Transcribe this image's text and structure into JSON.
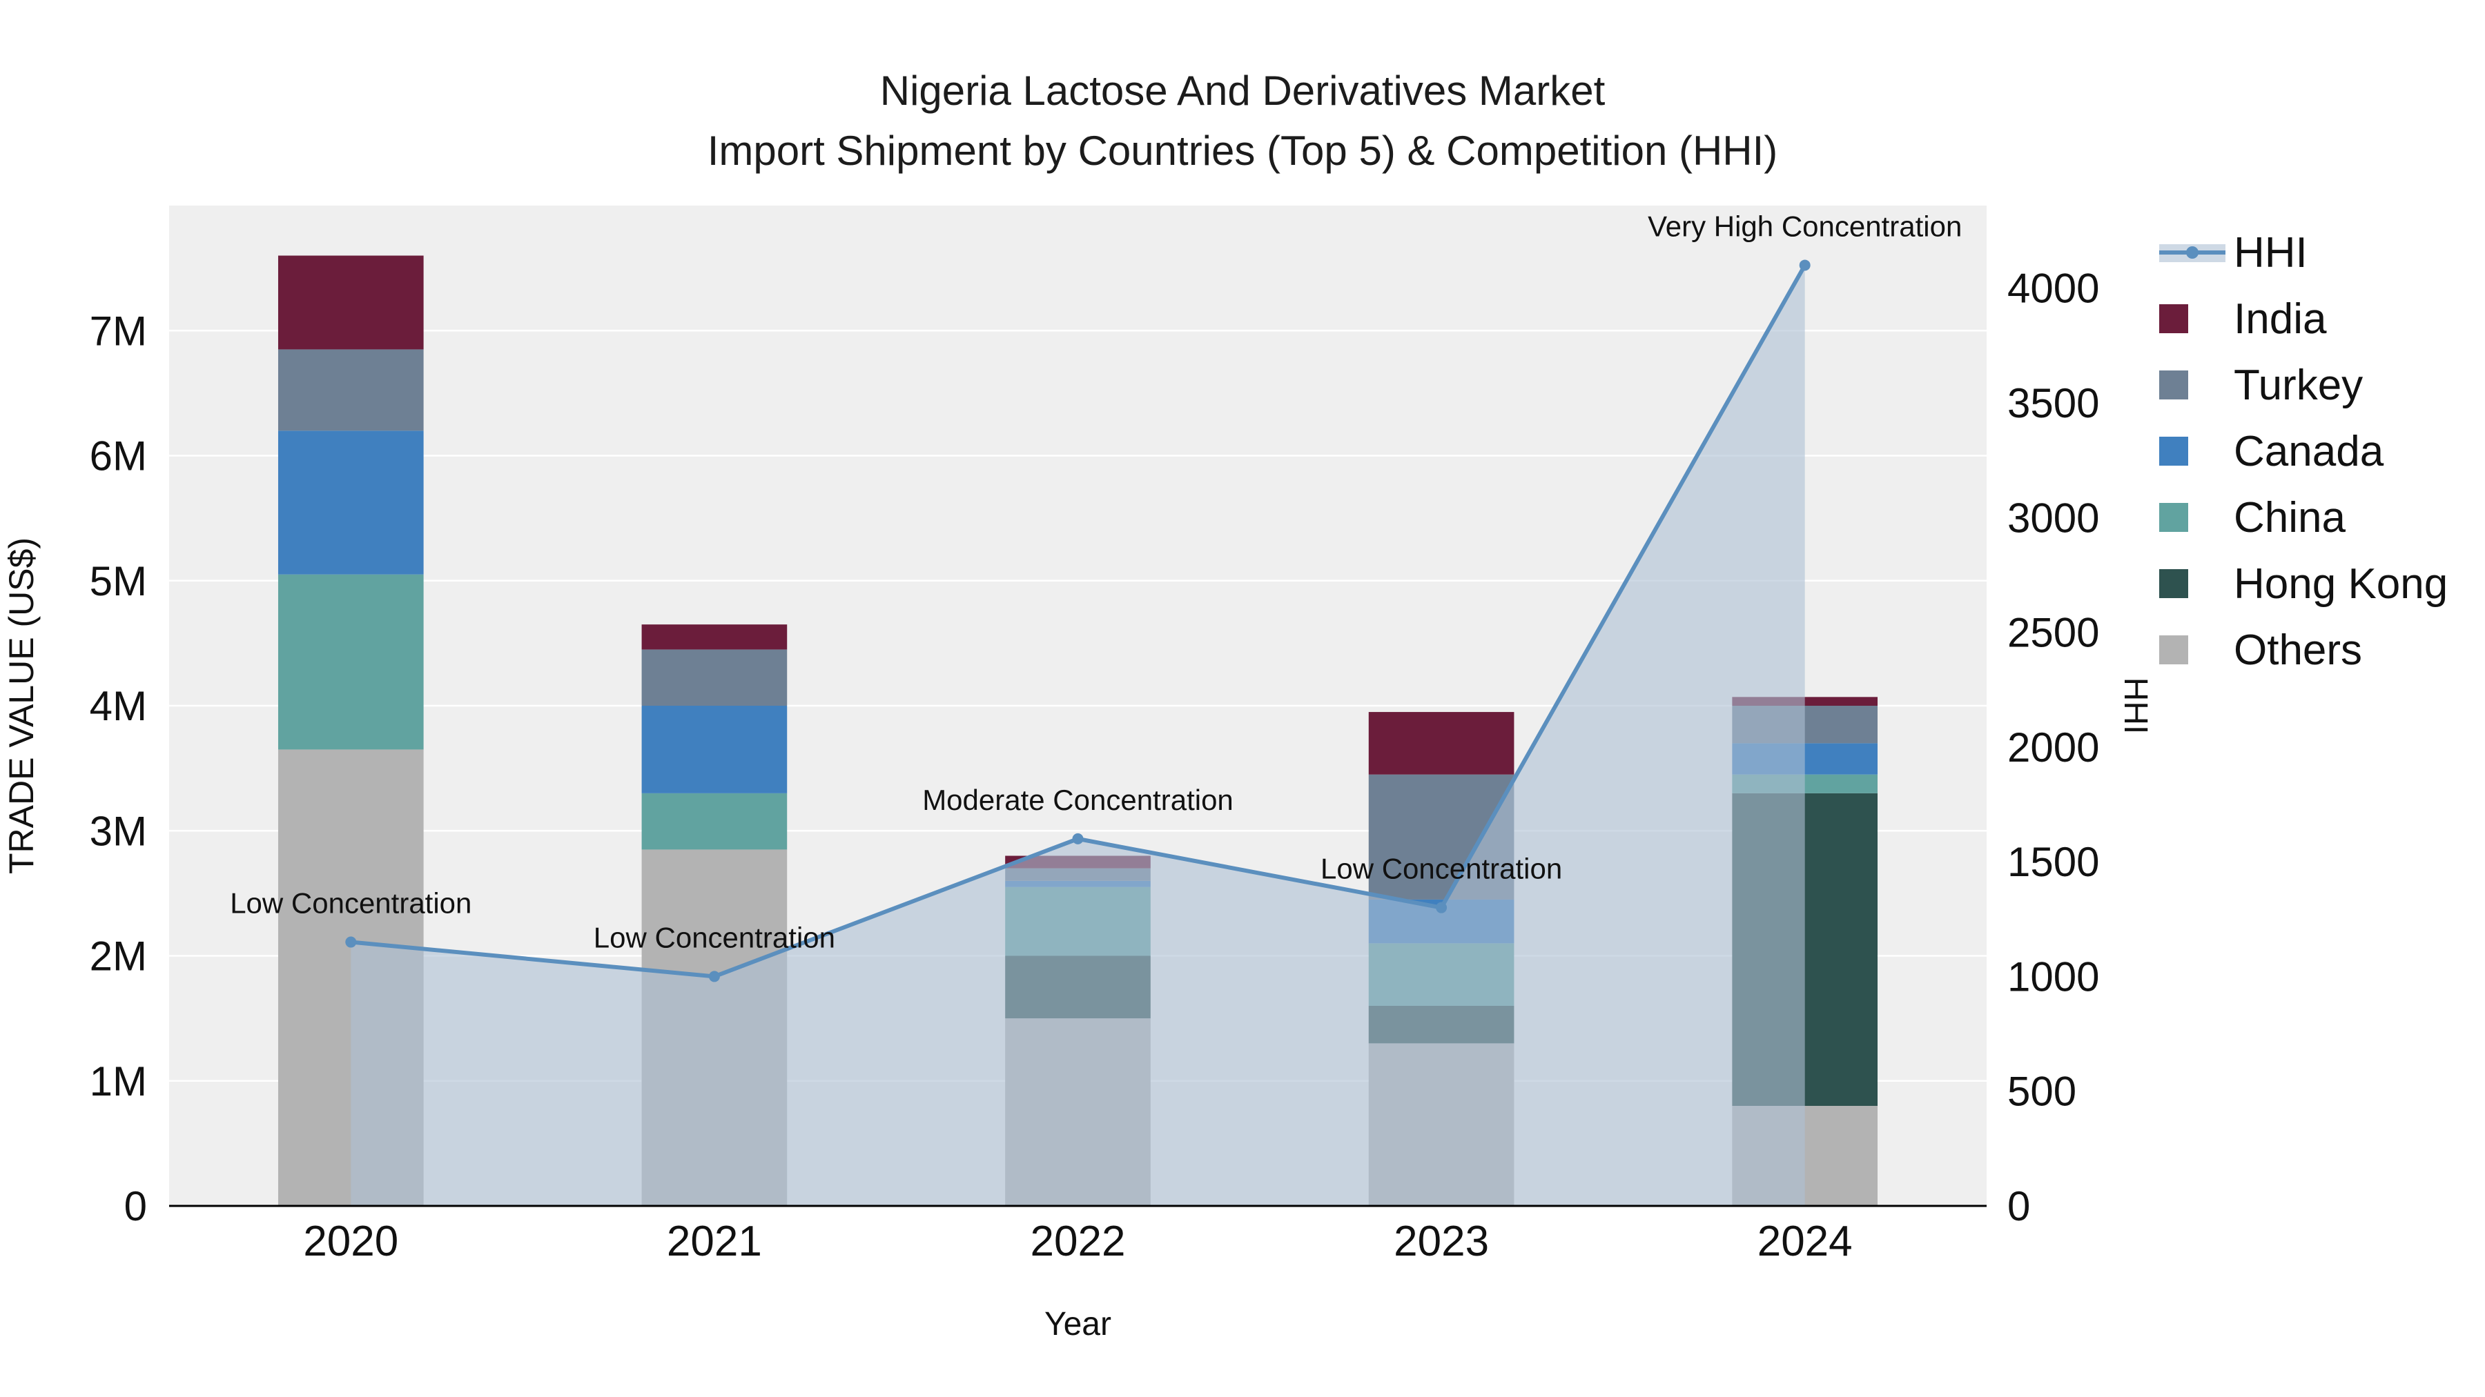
{
  "chart_data": {
    "type": "bar",
    "stacked": true,
    "title": "Nigeria Lactose And Derivatives Market",
    "subtitle": "Import Shipment by Countries (Top 5) & Competition (HHI)",
    "xlabel": "Year",
    "ylabel_left": "TRADE VALUE (US$)",
    "ylabel_right": "HHI",
    "categories": [
      "2020",
      "2021",
      "2022",
      "2023",
      "2024"
    ],
    "bar_width_fraction": 0.4,
    "bar_series": [
      {
        "name": "Others",
        "color": "#b3b3b3",
        "values": [
          3650000,
          2850000,
          1500000,
          1300000,
          800000
        ]
      },
      {
        "name": "Hong Kong",
        "color": "#2e524f",
        "values": [
          0,
          0,
          500000,
          300000,
          2500000
        ]
      },
      {
        "name": "China",
        "color": "#61a3a0",
        "values": [
          1400000,
          450000,
          550000,
          500000,
          150000
        ]
      },
      {
        "name": "Canada",
        "color": "#4080bf",
        "values": [
          1150000,
          700000,
          50000,
          350000,
          250000
        ]
      },
      {
        "name": "Turkey",
        "color": "#6e8094",
        "values": [
          650000,
          450000,
          100000,
          1000000,
          300000
        ]
      },
      {
        "name": "India",
        "color": "#6b1d3b",
        "values": [
          750000,
          200000,
          100000,
          500000,
          70000
        ]
      }
    ],
    "line_series": {
      "name": "HHI",
      "color": "#5b8fbe",
      "fill_color": "#aebfd4",
      "fill_opacity": 0.6,
      "values": [
        1150,
        1000,
        1600,
        1300,
        4100
      ],
      "annotations": [
        "Low Concentration",
        "Low Concentration",
        "Moderate Concentration",
        "Low Concentration",
        "Very High Concentration"
      ]
    },
    "left_axis": {
      "max": 8000000,
      "tick_values": [
        0,
        1000000,
        2000000,
        3000000,
        4000000,
        5000000,
        6000000,
        7000000
      ],
      "tick_labels": [
        "0",
        "1M",
        "2M",
        "3M",
        "4M",
        "5M",
        "6M",
        "7M"
      ]
    },
    "right_axis": {
      "max": 4360,
      "tick_values": [
        0,
        500,
        1000,
        1500,
        2000,
        2500,
        3000,
        3500,
        4000
      ],
      "tick_labels": [
        "0",
        "500",
        "1000",
        "1500",
        "2000",
        "2500",
        "3000",
        "3500",
        "4000"
      ]
    },
    "legend": [
      {
        "label": "HHI",
        "type": "line",
        "color": "#5b8fbe",
        "fill": "#aebfd4"
      },
      {
        "label": "India",
        "type": "square",
        "color": "#6b1d3b"
      },
      {
        "label": "Turkey",
        "type": "square",
        "color": "#6e8094"
      },
      {
        "label": "Canada",
        "type": "square",
        "color": "#4080bf"
      },
      {
        "label": "China",
        "type": "square",
        "color": "#61a3a0"
      },
      {
        "label": "Hong Kong",
        "type": "square",
        "color": "#2e524f"
      },
      {
        "label": "Others",
        "type": "square",
        "color": "#b3b3b3"
      }
    ],
    "plot_bg": "#efefef",
    "grid_color": "#ffffff",
    "axis_line_color": "#000000",
    "text_color": "#111111"
  }
}
